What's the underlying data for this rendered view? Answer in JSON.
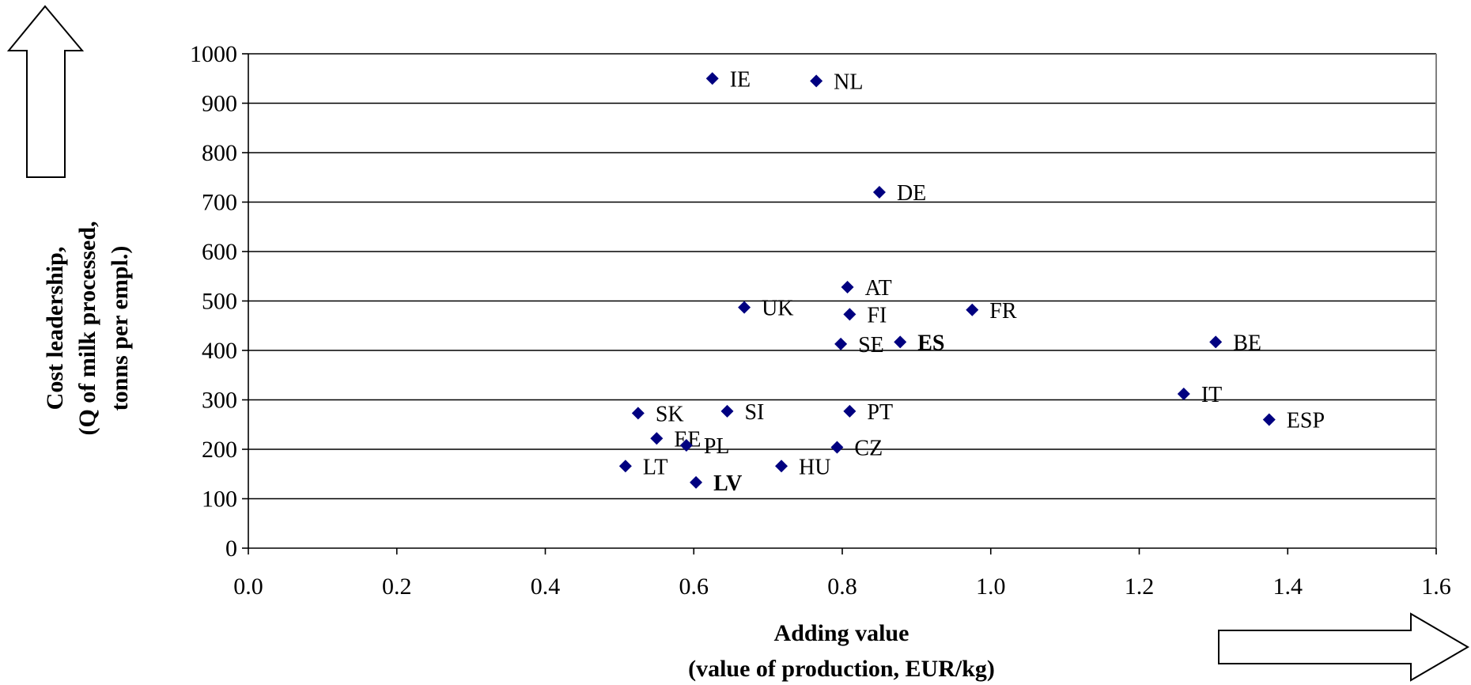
{
  "chart_data": {
    "type": "scatter",
    "xlabel": [
      "Adding value",
      "(value of production, EUR/kg)"
    ],
    "ylabel": [
      "Cost leadership,",
      "(Q of milk processed,",
      "tonns per  empl.)"
    ],
    "xlim": [
      0.0,
      1.6
    ],
    "ylim": [
      0,
      1000
    ],
    "x_ticks": [
      "0.0",
      "0.2",
      "0.4",
      "0.6",
      "0.8",
      "1.0",
      "1.2",
      "1.4",
      "1.6"
    ],
    "x_tick_values": [
      0.0,
      0.2,
      0.4,
      0.6,
      0.8,
      1.0,
      1.2,
      1.4,
      1.6
    ],
    "y_ticks": [
      "0",
      "100",
      "200",
      "300",
      "400",
      "500",
      "600",
      "700",
      "800",
      "900",
      "1000"
    ],
    "y_tick_values": [
      0,
      100,
      200,
      300,
      400,
      500,
      600,
      700,
      800,
      900,
      1000
    ],
    "grid": "horizontal",
    "marker_color": "#000080",
    "points": [
      {
        "label": "IE",
        "x": 0.625,
        "y": 950
      },
      {
        "label": "NL",
        "x": 0.765,
        "y": 945
      },
      {
        "label": "DE",
        "x": 0.85,
        "y": 720
      },
      {
        "label": "AT",
        "x": 0.807,
        "y": 528
      },
      {
        "label": "UK",
        "x": 0.668,
        "y": 487
      },
      {
        "label": "FI",
        "x": 0.81,
        "y": 473
      },
      {
        "label": "FR",
        "x": 0.975,
        "y": 482
      },
      {
        "label": "SE",
        "x": 0.798,
        "y": 413
      },
      {
        "label": "ES",
        "x": 0.878,
        "y": 417,
        "bold": true
      },
      {
        "label": "BE",
        "x": 1.303,
        "y": 417
      },
      {
        "label": "IT",
        "x": 1.26,
        "y": 312
      },
      {
        "label": "ESP",
        "x": 1.375,
        "y": 260
      },
      {
        "label": "SK",
        "x": 0.525,
        "y": 273
      },
      {
        "label": "SI",
        "x": 0.645,
        "y": 277
      },
      {
        "label": "PT",
        "x": 0.81,
        "y": 277
      },
      {
        "label": "EE",
        "x": 0.55,
        "y": 222
      },
      {
        "label": "PL",
        "x": 0.59,
        "y": 208
      },
      {
        "label": "CZ",
        "x": 0.793,
        "y": 204
      },
      {
        "label": "LT",
        "x": 0.508,
        "y": 166
      },
      {
        "label": "HU",
        "x": 0.718,
        "y": 166
      },
      {
        "label": "LV",
        "x": 0.603,
        "y": 133,
        "bold": true
      }
    ]
  }
}
